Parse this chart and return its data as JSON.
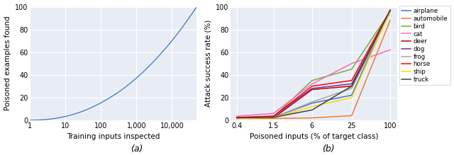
{
  "plot_a": {
    "xlabel": "Training inputs inspected",
    "ylabel": "Poisoned examples found",
    "label": "(a)",
    "bg_color": "#e8edf5",
    "line_color": "#4472c4",
    "x_ticks": [
      1,
      10,
      100,
      1000,
      10000
    ],
    "x_tick_labels": [
      "1",
      "10",
      "100",
      "1,000",
      "10,000"
    ],
    "ylim": [
      0,
      100
    ],
    "xlim_log": [
      1,
      50000
    ]
  },
  "plot_b": {
    "xlabel": "Poisoned inputs (% of target class)",
    "ylabel": "Attack success rate (%)",
    "label": "(b)",
    "bg_color": "#e8edf5",
    "x_ticks": [
      0.4,
      1.5,
      6,
      25,
      100
    ],
    "x_tick_labels": [
      "0.4",
      "1.5",
      "6",
      "25",
      "100"
    ],
    "ylim": [
      0,
      100
    ],
    "classes": [
      "airplane",
      "automobile",
      "bird",
      "cat",
      "deer",
      "dog",
      "frog",
      "horse",
      "ship",
      "truck"
    ],
    "colors": [
      "#4472c4",
      "#ed7d31",
      "#70ad47",
      "#ff69b4",
      "#c00000",
      "#7030a0",
      "#a5a5a5",
      "#ff0000",
      "#ffd700",
      "#404040"
    ],
    "data": {
      "airplane": [
        2.0,
        2.5,
        15.0,
        22.0,
        97.0
      ],
      "automobile": [
        1.5,
        1.5,
        2.0,
        4.0,
        88.0
      ],
      "bird": [
        2.0,
        3.0,
        35.0,
        45.0,
        96.0
      ],
      "cat": [
        3.5,
        6.0,
        32.0,
        50.0,
        62.0
      ],
      "deer": [
        1.5,
        2.0,
        27.0,
        30.0,
        97.0
      ],
      "dog": [
        2.0,
        3.5,
        28.0,
        32.0,
        96.0
      ],
      "frog": [
        2.0,
        2.5,
        16.0,
        28.0,
        95.0
      ],
      "horse": [
        2.5,
        3.5,
        30.0,
        35.0,
        97.0
      ],
      "ship": [
        1.5,
        2.0,
        12.0,
        20.0,
        96.0
      ],
      "truck": [
        2.0,
        2.5,
        9.0,
        30.0,
        97.0
      ]
    }
  }
}
